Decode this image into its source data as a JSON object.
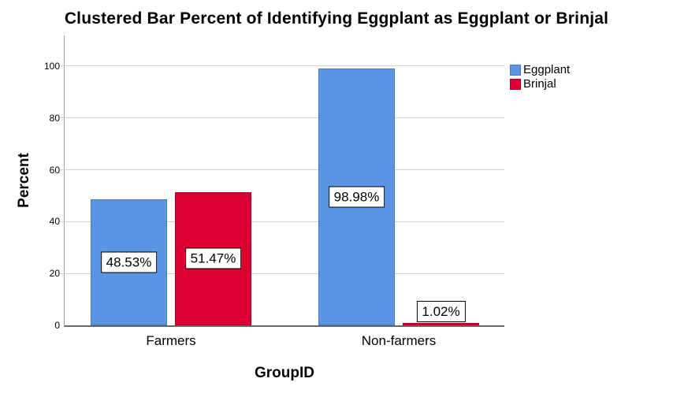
{
  "title": "Clustered Bar Percent of Identifying Eggplant as Eggplant or Brinjal",
  "chart_data": {
    "type": "bar",
    "title": "Clustered Bar Percent of Identifying Eggplant as Eggplant or Brinjal",
    "xlabel": "GroupID",
    "ylabel": "Percent",
    "categories": [
      "Farmers",
      "Non-farmers"
    ],
    "series": [
      {
        "name": "Eggplant",
        "color": "#5A94E2",
        "border_color": "#4379C6",
        "values": [
          48.53,
          98.98
        ],
        "value_labels": [
          "48.53%",
          "98.98%"
        ]
      },
      {
        "name": "Brinjal",
        "color": "#DE0032",
        "border_color": "#AC0026",
        "values": [
          51.47,
          1.02
        ],
        "value_labels": [
          "51.47%",
          "1.02%"
        ]
      }
    ],
    "y_ticks": [
      "0",
      "20",
      "40",
      "60",
      "80",
      "100"
    ],
    "ylim": [
      0,
      111.8
    ],
    "grid": true,
    "legend_position": "top-right",
    "legend_entries": [
      "Eggplant",
      "Brinjal"
    ]
  },
  "style_colors": {
    "background": "#FFFFFF",
    "gridline": "#D1D1D1",
    "y_axis_line": "#9E9E9E",
    "x_axis_line": "#666666",
    "text": "#000000",
    "value_label_bg": "#FFFFFF",
    "value_label_border": "#000000"
  }
}
